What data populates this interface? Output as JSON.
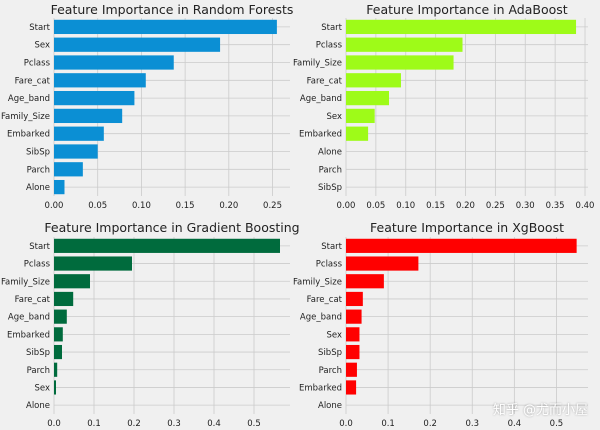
{
  "watermark": "知乎 @尤而小屋",
  "chart_data": [
    {
      "type": "bar",
      "orientation": "horizontal",
      "title": "Feature Importance in Random Forests",
      "color": "#0b8fd4",
      "categories": [
        "Start",
        "Sex",
        "Pclass",
        "Fare_cat",
        "Age_band",
        "Family_Size",
        "Embarked",
        "SibSp",
        "Parch",
        "Alone"
      ],
      "values": [
        0.255,
        0.19,
        0.137,
        0.105,
        0.092,
        0.078,
        0.057,
        0.05,
        0.033,
        0.012
      ],
      "xlim": [
        0,
        0.27
      ],
      "xticks": [
        0.0,
        0.05,
        0.1,
        0.15,
        0.2,
        0.25
      ],
      "xtick_labels": [
        "0.00",
        "0.05",
        "0.10",
        "0.15",
        "0.20",
        "0.25"
      ],
      "grid": true
    },
    {
      "type": "bar",
      "orientation": "horizontal",
      "title": "Feature Importance in AdaBoost",
      "color": "#9efb18",
      "categories": [
        "Start",
        "Pclass",
        "Family_Size",
        "Fare_cat",
        "Age_band",
        "Sex",
        "Embarked",
        "Alone",
        "Parch",
        "SibSp"
      ],
      "values": [
        0.385,
        0.195,
        0.18,
        0.092,
        0.072,
        0.048,
        0.037,
        0,
        0,
        0
      ],
      "xlim": [
        0,
        0.405
      ],
      "xticks": [
        0.0,
        0.05,
        0.1,
        0.15,
        0.2,
        0.25,
        0.3,
        0.35,
        0.4
      ],
      "xtick_labels": [
        "0.00",
        "0.05",
        "0.10",
        "0.15",
        "0.20",
        "0.25",
        "0.30",
        "0.35",
        "0.40"
      ],
      "grid": true
    },
    {
      "type": "bar",
      "orientation": "horizontal",
      "title": "Feature Importance in Gradient Boosting",
      "color": "#006b3d",
      "categories": [
        "Start",
        "Pclass",
        "Family_Size",
        "Fare_cat",
        "Age_band",
        "Embarked",
        "SibSp",
        "Parch",
        "Sex",
        "Alone"
      ],
      "values": [
        0.565,
        0.195,
        0.09,
        0.048,
        0.032,
        0.022,
        0.02,
        0.008,
        0.005,
        0
      ],
      "xlim": [
        0,
        0.59
      ],
      "xticks": [
        0,
        0.1,
        0.2,
        0.3,
        0.4,
        0.5
      ],
      "xtick_labels": [
        "0.0",
        "0.1",
        "0.2",
        "0.3",
        "0.4",
        "0.5"
      ],
      "grid": true
    },
    {
      "type": "bar",
      "orientation": "horizontal",
      "title": "Feature Importance in XgBoost",
      "color": "#ff0000",
      "categories": [
        "Start",
        "Pclass",
        "Family_Size",
        "Fare_cat",
        "Age_band",
        "Sex",
        "SibSp",
        "Parch",
        "Embarked",
        "Alone"
      ],
      "values": [
        0.548,
        0.172,
        0.09,
        0.04,
        0.037,
        0.032,
        0.032,
        0.026,
        0.024,
        0
      ],
      "xlim": [
        0,
        0.575
      ],
      "xticks": [
        0,
        0.1,
        0.2,
        0.3,
        0.4,
        0.5
      ],
      "xtick_labels": [
        "0.0",
        "0.1",
        "0.2",
        "0.3",
        "0.4",
        "0.5"
      ],
      "grid": true
    }
  ]
}
